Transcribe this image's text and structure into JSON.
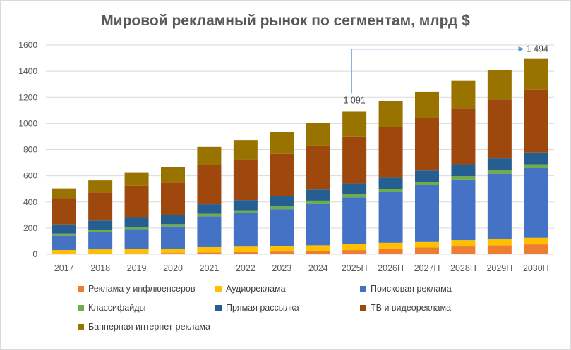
{
  "chart_data": {
    "type": "bar",
    "stacked": true,
    "title": "Мировой рекламный рынок по сегментам, млрд $",
    "xlabel": "",
    "ylabel": "",
    "ylim": [
      0,
      1600
    ],
    "yticks": [
      0,
      200,
      400,
      600,
      800,
      1000,
      1200,
      1400,
      1600
    ],
    "grid": true,
    "legend_position": "bottom",
    "categories": [
      "2017",
      "2018",
      "2019",
      "2020",
      "2021",
      "2022",
      "2023",
      "2024",
      "2025П",
      "2026П",
      "2027П",
      "2028П",
      "2029П",
      "2030П"
    ],
    "series": [
      {
        "name": "Реклама у инфлюенсеров",
        "color": "#ed7d31",
        "values": [
          3,
          5,
          7,
          10,
          14,
          16,
          21,
          24,
          32,
          41,
          51,
          59,
          67,
          75
        ]
      },
      {
        "name": "Аудиореклама",
        "color": "#ffc000",
        "values": [
          29,
          32,
          34,
          32,
          40,
          42,
          43,
          44,
          46,
          46,
          47,
          48,
          49,
          50
        ]
      },
      {
        "name": "Поисковая реклама",
        "color": "#4472c4",
        "values": [
          110,
          130,
          150,
          170,
          235,
          257,
          280,
          320,
          357,
          390,
          430,
          465,
          500,
          535
        ]
      },
      {
        "name": "Классифайды",
        "color": "#70ad47",
        "values": [
          16,
          17,
          18,
          18,
          20,
          21,
          21,
          22,
          23,
          24,
          25,
          25,
          26,
          27
        ]
      },
      {
        "name": "Прямая рассылка",
        "color": "#255e91",
        "values": [
          70,
          73,
          74,
          68,
          73,
          78,
          82,
          84,
          83,
          84,
          87,
          90,
          90,
          90
        ]
      },
      {
        "name": "ТВ и видеореклама",
        "color": "#9e480e",
        "values": [
          200,
          215,
          240,
          250,
          300,
          310,
          325,
          336,
          360,
          388,
          400,
          425,
          450,
          480
        ]
      },
      {
        "name": "Баннерная интернет-реклама",
        "color": "#997300",
        "values": [
          75,
          93,
          104,
          120,
          138,
          148,
          160,
          172,
          190,
          200,
          205,
          215,
          225,
          237
        ]
      }
    ],
    "annotations": [
      {
        "label": "1 091",
        "category": "2025П",
        "value": 1091
      },
      {
        "label": "1 494",
        "category": "2030П",
        "value": 1494
      }
    ],
    "arrow_color": "#5b9bd5"
  }
}
